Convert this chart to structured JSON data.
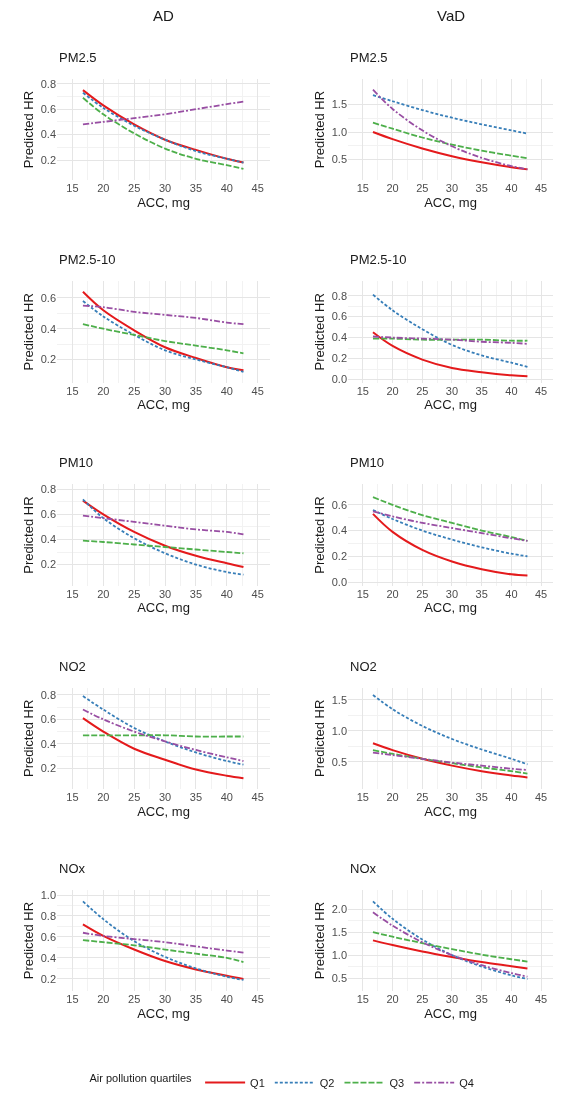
{
  "chart_data": [
    {
      "type": "line",
      "title": "PM2.5",
      "annotations": [
        "AD"
      ],
      "xlabel": "ACC, mg",
      "ylabel": "Predicted HR",
      "legend": "bottom",
      "legend_title": "Air pollution quartiles",
      "grid": true,
      "xlim": [
        12.5,
        47
      ],
      "xticks": [
        15,
        20,
        25,
        30,
        35,
        40,
        45
      ],
      "ylim": [
        0.04,
        0.84
      ],
      "yticks": [
        0.2,
        0.4,
        0.6,
        0.8
      ],
      "x": [
        16.7,
        20,
        25,
        30,
        35,
        40,
        42.7
      ],
      "series": [
        {
          "name": "Q1",
          "color": "#e41a1c",
          "line_style": "solid",
          "values": [
            0.75,
            0.63,
            0.48,
            0.36,
            0.28,
            0.21,
            0.18
          ]
        },
        {
          "name": "Q2",
          "color": "#377eb8",
          "line_style": "dotted",
          "values": [
            0.73,
            0.61,
            0.47,
            0.36,
            0.27,
            0.21,
            0.18
          ]
        },
        {
          "name": "Q3",
          "color": "#4daf4a",
          "line_style": "dashed",
          "values": [
            0.69,
            0.56,
            0.41,
            0.29,
            0.21,
            0.16,
            0.13
          ]
        },
        {
          "name": "Q4",
          "color": "#984ea3",
          "line_style": "dashdot",
          "values": [
            0.48,
            0.5,
            0.53,
            0.56,
            0.6,
            0.64,
            0.66
          ]
        }
      ]
    },
    {
      "type": "line",
      "title": "PM2.5",
      "annotations": [
        "VaD"
      ],
      "xlabel": "ACC, mg",
      "ylabel": "Predicted HR",
      "grid": true,
      "xlim": [
        12.5,
        47
      ],
      "xticks": [
        15,
        20,
        25,
        30,
        35,
        40,
        45
      ],
      "ylim": [
        0.12,
        1.97
      ],
      "yticks": [
        0.5,
        {
          "value": 1,
          "label": "1.0"
        },
        1.5
      ],
      "x": [
        16.7,
        20,
        25,
        30,
        35,
        40,
        42.7
      ],
      "series": [
        {
          "color": "#e41a1c",
          "line_style": "solid",
          "values": [
            1.0,
            0.87,
            0.7,
            0.56,
            0.45,
            0.36,
            0.32
          ]
        },
        {
          "color": "#377eb8",
          "line_style": "dotted",
          "values": [
            1.67,
            1.56,
            1.4,
            1.26,
            1.14,
            1.03,
            0.97
          ]
        },
        {
          "color": "#4daf4a",
          "line_style": "dashed",
          "values": [
            1.17,
            1.06,
            0.9,
            0.77,
            0.66,
            0.57,
            0.52
          ]
        },
        {
          "color": "#984ea3",
          "line_style": "dashdot",
          "values": [
            1.77,
            1.42,
            1.03,
            0.74,
            0.53,
            0.38,
            0.32
          ]
        }
      ]
    },
    {
      "type": "line",
      "title": "PM2.5-10",
      "xlabel": "ACC, mg",
      "ylabel": "Predicted HR",
      "grid": true,
      "xlim": [
        12.5,
        47
      ],
      "xticks": [
        15,
        20,
        25,
        30,
        35,
        40,
        45
      ],
      "ylim": [
        0.05,
        0.71
      ],
      "yticks": [
        0.2,
        0.4,
        0.6
      ],
      "x": [
        16.7,
        20,
        25,
        30,
        35,
        40,
        42.7
      ],
      "series": [
        {
          "color": "#e41a1c",
          "line_style": "solid",
          "values": [
            0.64,
            0.52,
            0.39,
            0.28,
            0.21,
            0.15,
            0.13
          ]
        },
        {
          "color": "#377eb8",
          "line_style": "dotted",
          "values": [
            0.58,
            0.48,
            0.36,
            0.26,
            0.2,
            0.15,
            0.12
          ]
        },
        {
          "color": "#4daf4a",
          "line_style": "dashed",
          "values": [
            0.43,
            0.4,
            0.36,
            0.32,
            0.29,
            0.26,
            0.24
          ]
        },
        {
          "color": "#984ea3",
          "line_style": "dashdot",
          "values": [
            0.55,
            0.54,
            0.51,
            0.49,
            0.47,
            0.44,
            0.43
          ]
        }
      ]
    },
    {
      "type": "line",
      "title": "PM2.5-10",
      "xlabel": "ACC, mg",
      "ylabel": "Predicted HR",
      "grid": true,
      "xlim": [
        12.5,
        47
      ],
      "xticks": [
        15,
        20,
        25,
        30,
        35,
        40,
        45
      ],
      "ylim": [
        -0.03,
        0.94
      ],
      "yticks": [
        {
          "value": 0,
          "label": "0.0"
        },
        0.2,
        0.4,
        0.6,
        0.8
      ],
      "x": [
        16.7,
        20,
        25,
        30,
        35,
        40,
        42.7
      ],
      "series": [
        {
          "color": "#e41a1c",
          "line_style": "solid",
          "values": [
            0.45,
            0.32,
            0.19,
            0.11,
            0.07,
            0.04,
            0.03
          ]
        },
        {
          "color": "#377eb8",
          "line_style": "dotted",
          "values": [
            0.81,
            0.66,
            0.48,
            0.33,
            0.23,
            0.16,
            0.12
          ]
        },
        {
          "color": "#4daf4a",
          "line_style": "dashed",
          "values": [
            0.39,
            0.39,
            0.38,
            0.38,
            0.38,
            0.37,
            0.37
          ]
        },
        {
          "color": "#984ea3",
          "line_style": "dashdot",
          "values": [
            0.41,
            0.4,
            0.39,
            0.38,
            0.36,
            0.35,
            0.34
          ]
        }
      ]
    },
    {
      "type": "line",
      "title": "PM10",
      "xlabel": "ACC, mg",
      "ylabel": "Predicted HR",
      "grid": true,
      "xlim": [
        12.5,
        47
      ],
      "xticks": [
        15,
        20,
        25,
        30,
        35,
        40,
        45
      ],
      "ylim": [
        0.03,
        0.84
      ],
      "yticks": [
        0.2,
        0.4,
        0.6,
        0.8
      ],
      "x": [
        16.7,
        20,
        25,
        30,
        35,
        40,
        42.7
      ],
      "series": [
        {
          "color": "#e41a1c",
          "line_style": "solid",
          "values": [
            0.71,
            0.6,
            0.46,
            0.35,
            0.27,
            0.21,
            0.18
          ]
        },
        {
          "color": "#377eb8",
          "line_style": "dotted",
          "values": [
            0.72,
            0.57,
            0.41,
            0.29,
            0.2,
            0.14,
            0.12
          ]
        },
        {
          "color": "#4daf4a",
          "line_style": "dashed",
          "values": [
            0.39,
            0.38,
            0.36,
            0.34,
            0.32,
            0.3,
            0.29
          ]
        },
        {
          "color": "#984ea3",
          "line_style": "dashdot",
          "values": [
            0.59,
            0.57,
            0.54,
            0.51,
            0.48,
            0.46,
            0.44
          ]
        }
      ]
    },
    {
      "type": "line",
      "title": "PM10",
      "xlabel": "ACC, mg",
      "ylabel": "Predicted HR",
      "grid": true,
      "xlim": [
        12.5,
        47
      ],
      "xticks": [
        15,
        20,
        25,
        30,
        35,
        40,
        45
      ],
      "ylim": [
        -0.03,
        0.76
      ],
      "yticks": [
        {
          "value": 0,
          "label": "0.0"
        },
        0.2,
        0.4,
        0.6
      ],
      "x": [
        16.7,
        20,
        25,
        30,
        35,
        40,
        42.7
      ],
      "series": [
        {
          "color": "#e41a1c",
          "line_style": "solid",
          "values": [
            0.53,
            0.39,
            0.25,
            0.16,
            0.1,
            0.06,
            0.05
          ]
        },
        {
          "color": "#377eb8",
          "line_style": "dotted",
          "values": [
            0.56,
            0.49,
            0.4,
            0.33,
            0.27,
            0.22,
            0.2
          ]
        },
        {
          "color": "#4daf4a",
          "line_style": "dashed",
          "values": [
            0.66,
            0.6,
            0.52,
            0.46,
            0.4,
            0.35,
            0.32
          ]
        },
        {
          "color": "#984ea3",
          "line_style": "dashdot",
          "values": [
            0.55,
            0.51,
            0.46,
            0.42,
            0.38,
            0.34,
            0.32
          ]
        }
      ]
    },
    {
      "type": "line",
      "title": "NO2",
      "xlabel": "ACC, mg",
      "ylabel": "Predicted HR",
      "grid": true,
      "xlim": [
        12.5,
        47
      ],
      "xticks": [
        15,
        20,
        25,
        30,
        35,
        40,
        45
      ],
      "ylim": [
        0.03,
        0.86
      ],
      "yticks": [
        0.2,
        0.4,
        0.6,
        0.8
      ],
      "x": [
        16.7,
        20,
        25,
        30,
        35,
        40,
        42.7
      ],
      "series": [
        {
          "color": "#e41a1c",
          "line_style": "solid",
          "values": [
            0.61,
            0.5,
            0.36,
            0.27,
            0.19,
            0.14,
            0.12
          ]
        },
        {
          "color": "#377eb8",
          "line_style": "dotted",
          "values": [
            0.79,
            0.68,
            0.53,
            0.42,
            0.33,
            0.26,
            0.23
          ]
        },
        {
          "color": "#4daf4a",
          "line_style": "dashed",
          "values": [
            0.47,
            0.47,
            0.47,
            0.47,
            0.46,
            0.46,
            0.46
          ]
        },
        {
          "color": "#984ea3",
          "line_style": "dashdot",
          "values": [
            0.68,
            0.6,
            0.5,
            0.42,
            0.35,
            0.29,
            0.26
          ]
        }
      ]
    },
    {
      "type": "line",
      "title": "NO2",
      "xlabel": "ACC, mg",
      "ylabel": "Predicted HR",
      "grid": true,
      "xlim": [
        12.5,
        47
      ],
      "xticks": [
        15,
        20,
        25,
        30,
        35,
        40,
        45
      ],
      "ylim": [
        0.06,
        1.7
      ],
      "yticks": [
        0.5,
        {
          "value": 1,
          "label": "1.0"
        },
        1.5
      ],
      "x": [
        16.7,
        20,
        25,
        30,
        35,
        40,
        42.7
      ],
      "series": [
        {
          "color": "#e41a1c",
          "line_style": "solid",
          "values": [
            0.8,
            0.69,
            0.55,
            0.44,
            0.35,
            0.28,
            0.25
          ]
        },
        {
          "color": "#377eb8",
          "line_style": "dotted",
          "values": [
            1.58,
            1.35,
            1.08,
            0.87,
            0.7,
            0.55,
            0.46
          ]
        },
        {
          "color": "#4daf4a",
          "line_style": "dashed",
          "values": [
            0.69,
            0.63,
            0.55,
            0.48,
            0.41,
            0.35,
            0.31
          ]
        },
        {
          "color": "#984ea3",
          "line_style": "dashdot",
          "values": [
            0.65,
            0.61,
            0.55,
            0.49,
            0.44,
            0.39,
            0.37
          ]
        }
      ]
    },
    {
      "type": "line",
      "title": "NOx",
      "xlabel": "ACC, mg",
      "ylabel": "Predicted HR",
      "grid": true,
      "xlim": [
        12.5,
        47
      ],
      "xticks": [
        15,
        20,
        25,
        30,
        35,
        40,
        45
      ],
      "ylim": [
        0.08,
        1.05
      ],
      "yticks": [
        0.2,
        0.4,
        0.6,
        0.8,
        {
          "value": 1,
          "label": "1.0"
        }
      ],
      "x": [
        16.7,
        20,
        25,
        30,
        35,
        40,
        42.7
      ],
      "series": [
        {
          "color": "#e41a1c",
          "line_style": "solid",
          "values": [
            0.72,
            0.61,
            0.48,
            0.37,
            0.29,
            0.23,
            0.2
          ]
        },
        {
          "color": "#377eb8",
          "line_style": "dotted",
          "values": [
            0.94,
            0.77,
            0.56,
            0.41,
            0.3,
            0.22,
            0.19
          ]
        },
        {
          "color": "#4daf4a",
          "line_style": "dashed",
          "values": [
            0.57,
            0.55,
            0.52,
            0.48,
            0.44,
            0.4,
            0.36
          ]
        },
        {
          "color": "#984ea3",
          "line_style": "dashdot",
          "values": [
            0.64,
            0.61,
            0.58,
            0.55,
            0.51,
            0.47,
            0.45
          ]
        }
      ]
    },
    {
      "type": "line",
      "title": "NOx",
      "xlabel": "ACC, mg",
      "ylabel": "Predicted HR",
      "grid": true,
      "xlim": [
        12.5,
        47
      ],
      "xticks": [
        15,
        20,
        25,
        30,
        35,
        40,
        45
      ],
      "ylim": [
        0.21,
        2.42
      ],
      "yticks": [
        0.5,
        {
          "value": 1,
          "label": "1.0"
        },
        1.5,
        {
          "value": 2,
          "label": "2.0"
        }
      ],
      "x": [
        16.7,
        20,
        25,
        30,
        35,
        40,
        42.7
      ],
      "series": [
        {
          "color": "#e41a1c",
          "line_style": "solid",
          "values": [
            1.32,
            1.22,
            1.08,
            0.96,
            0.85,
            0.76,
            0.71
          ]
        },
        {
          "color": "#377eb8",
          "line_style": "dotted",
          "values": [
            2.17,
            1.79,
            1.34,
            1.0,
            0.75,
            0.56,
            0.48
          ]
        },
        {
          "color": "#4daf4a",
          "line_style": "dashed",
          "values": [
            1.5,
            1.4,
            1.26,
            1.13,
            1.01,
            0.91,
            0.86
          ]
        },
        {
          "color": "#984ea3",
          "line_style": "dashdot",
          "values": [
            1.93,
            1.64,
            1.28,
            1.0,
            0.78,
            0.61,
            0.53
          ]
        }
      ]
    }
  ]
}
